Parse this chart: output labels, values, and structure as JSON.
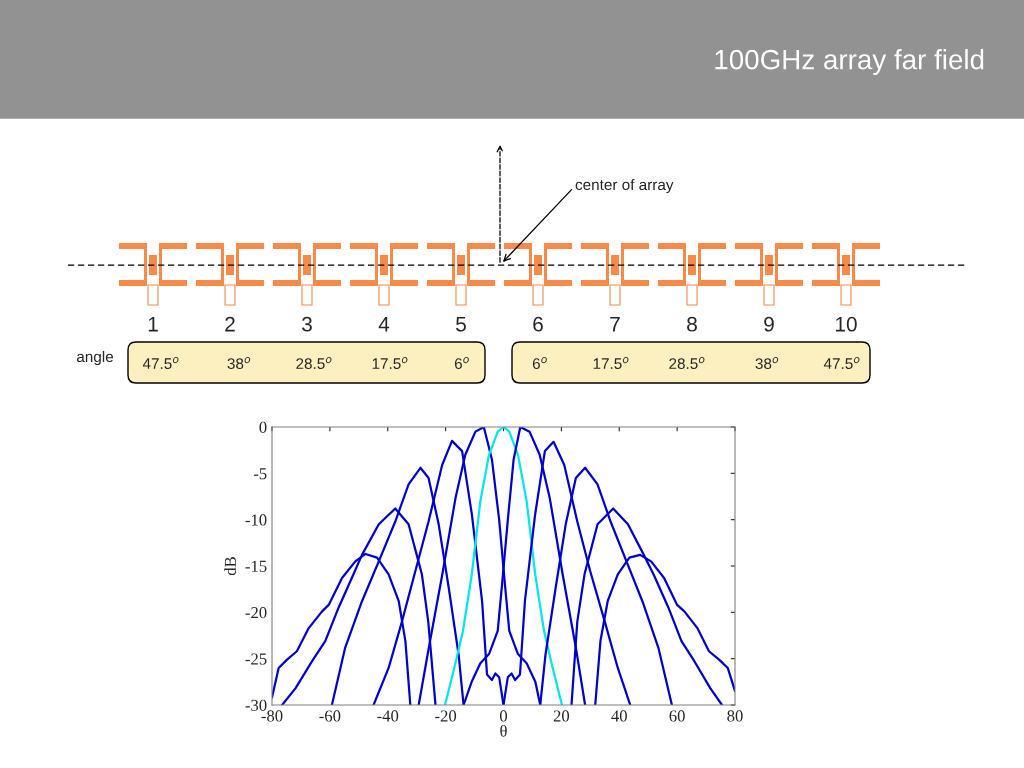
{
  "chart_data": {
    "type": "line",
    "title": "100GHz array far field",
    "xlabel": "θ",
    "ylabel": "dB",
    "xlim": [
      -80,
      80
    ],
    "xticks": [
      -80,
      -60,
      -40,
      -20,
      0,
      20,
      40,
      60,
      80
    ],
    "ylim": [
      -30,
      0
    ],
    "yticks": [
      -30,
      -25,
      -20,
      -15,
      -10,
      -5,
      0
    ],
    "grid": false,
    "legend": false,
    "annotations": [
      "center of array",
      "1",
      "2",
      "3",
      "4",
      "5",
      "6",
      "7",
      "8",
      "9",
      "10",
      "angle",
      "47.5$^{o}$",
      "38$^{o}$",
      "28.5$^{o}$",
      "17.5$^{o}$",
      "6$^{o}$",
      "6$^{o}$",
      "17.5$^{o}$",
      "28.5$^{o}$",
      "38$^{o}$",
      "47.5$^{o}$"
    ],
    "series": [
      {
        "color": "#0000cc",
        "x": [
          -80,
          -77.7,
          -74.8,
          -71.4,
          -67.3,
          -62.7,
          -60.4,
          -55.8,
          -51.2,
          -47.7,
          -43.7,
          -39.7,
          -36.2,
          -33.9,
          -32.2
        ],
        "values": [
          -29.2,
          -26,
          -25.1,
          -24.2,
          -21.7,
          -19.9,
          -19.2,
          -16.3,
          -14.5,
          -13.7,
          -14.1,
          -15.9,
          -18.8,
          -23.1,
          -30
        ]
      },
      {
        "color": "#0000cc",
        "x": [
          -76.5,
          -71.9,
          -66.2,
          -61.6,
          -57,
          -52,
          -48.9,
          -43.1,
          -37.4,
          -32.8,
          -28.2,
          -26,
          -23.5
        ],
        "values": [
          -30,
          -28.2,
          -25.3,
          -23.1,
          -19.5,
          -16,
          -13.8,
          -10.5,
          -8.8,
          -10.5,
          -15.9,
          -21,
          -30
        ]
      },
      {
        "color": "#0000cc",
        "x": [
          -59.3,
          -54.7,
          -48.9,
          -43.1,
          -37.4,
          -32.8,
          -28.7,
          -25.9,
          -22.4,
          -18.9,
          -15.5,
          -13.8
        ],
        "values": [
          -30,
          -23.8,
          -18.8,
          -14.5,
          -10.2,
          -6.2,
          -4.4,
          -5.5,
          -10.5,
          -17.4,
          -24.6,
          -30
        ]
      },
      {
        "color": "#0000cc",
        "x": [
          -44.9,
          -39.7,
          -35.1,
          -30.5,
          -25.9,
          -21.2,
          -17.8,
          -14.3,
          -10.9,
          -7.4,
          -5.7,
          -4,
          -2.8,
          -1.5,
          0
        ],
        "values": [
          -30,
          -26,
          -21,
          -15.6,
          -10.2,
          -4.1,
          -1.5,
          -2.6,
          -9.5,
          -18.8,
          -26.7,
          -27.3,
          -26.6,
          -27,
          -30
        ]
      },
      {
        "color": "#0000cc",
        "x": [
          -29.3,
          -25.8,
          -21.2,
          -16.6,
          -13.2,
          -9.7,
          -6.8,
          -4,
          -1.5,
          0.5,
          2,
          5,
          8,
          11,
          12.7
        ],
        "values": [
          -30,
          -23.8,
          -16,
          -7.7,
          -3,
          -0.5,
          0,
          -3.5,
          -10,
          -17,
          -22,
          -24.5,
          -25.5,
          -27.5,
          -30
        ]
      },
      {
        "color": "#00e5ee",
        "x": [
          -20.2,
          -17,
          -14,
          -11,
          -8,
          -5,
          -2,
          0,
          2,
          5,
          8,
          11,
          14,
          17,
          20.2
        ],
        "values": [
          -30,
          -26,
          -22,
          -16,
          -8,
          -3,
          -0.5,
          0,
          -0.5,
          -3,
          -8,
          -16,
          -22,
          -26,
          -30
        ]
      },
      {
        "color": "#0000cc",
        "x": [
          -13.8,
          -11,
          -8,
          -5,
          -2,
          -0.5,
          1.5,
          3.5,
          5.8,
          9,
          12.5,
          16,
          20.5,
          25,
          28.2
        ],
        "values": [
          -30,
          -27.5,
          -25.5,
          -24.5,
          -22,
          -17,
          -10,
          -3.5,
          0,
          -0.5,
          -3,
          -7.7,
          -16,
          -23.8,
          -30
        ]
      },
      {
        "color": "#0000cc",
        "x": [
          0,
          1.5,
          2.8,
          4,
          5.7,
          7.4,
          10.9,
          14.3,
          17.3,
          21,
          25.5,
          30,
          35,
          39.5,
          43.8
        ],
        "values": [
          -30,
          -27,
          -26.6,
          -27.3,
          -26.7,
          -18.8,
          -9.5,
          -2.6,
          -1.6,
          -4.1,
          -10.2,
          -15.6,
          -21,
          -26,
          -30
        ]
      },
      {
        "color": "#0000cc",
        "x": [
          12.7,
          14.5,
          18,
          21.5,
          25,
          28.2,
          32.5,
          37,
          42.5,
          48,
          53.5,
          58.2
        ],
        "values": [
          -30,
          -24.6,
          -17.4,
          -10.5,
          -5.5,
          -4.4,
          -6.2,
          -10.2,
          -14.5,
          -18.8,
          -23.8,
          -30
        ]
      },
      {
        "color": "#0000cc",
        "x": [
          23.5,
          25.5,
          28,
          32.5,
          37.9,
          43,
          48.5,
          52,
          57,
          61.5,
          66,
          71.5,
          75.5
        ],
        "values": [
          -30,
          -21,
          -15.9,
          -10.5,
          -8.8,
          -10.5,
          -13.8,
          -16,
          -19.5,
          -23.1,
          -25.3,
          -28.2,
          -30
        ]
      },
      {
        "color": "#0000cc",
        "x": [
          31.7,
          33.5,
          36,
          39.5,
          43.5,
          47.2,
          51,
          55.5,
          60,
          62.5,
          67,
          71,
          74.5,
          77.5,
          80
        ],
        "values": [
          -30,
          -23.1,
          -18.8,
          -15.9,
          -14.1,
          -13.8,
          -14.5,
          -16.3,
          -19.2,
          -19.9,
          -21.7,
          -24.2,
          -25.1,
          -26,
          -28.5
        ]
      }
    ]
  }
}
